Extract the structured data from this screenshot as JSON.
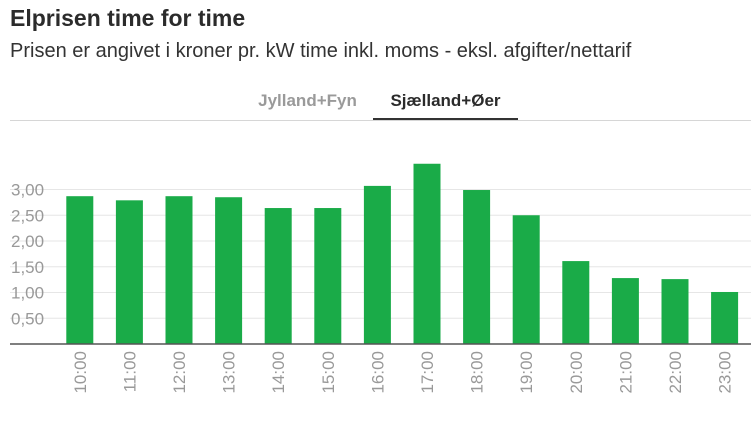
{
  "header": {
    "title": "Elprisen time for time",
    "subtitle": "Prisen er angivet i kroner pr. kW time inkl. moms - eksl. afgifter/nettarif"
  },
  "tabs": [
    {
      "label": "Jylland+Fyn",
      "active": false
    },
    {
      "label": "Sjælland+Øer",
      "active": true
    }
  ],
  "colors": {
    "bar": "#1aab48",
    "grid": "#e6e6e6",
    "axis": "#555555",
    "tick_label": "#999999"
  },
  "chart_data": {
    "type": "bar",
    "categories": [
      "10:00",
      "11:00",
      "12:00",
      "13:00",
      "14:00",
      "15:00",
      "16:00",
      "17:00",
      "18:00",
      "19:00",
      "20:00",
      "21:00",
      "22:00",
      "23:00"
    ],
    "values": [
      2.87,
      2.79,
      2.87,
      2.85,
      2.64,
      2.64,
      3.07,
      3.5,
      2.99,
      2.5,
      1.61,
      1.28,
      1.26,
      1.01
    ],
    "y_ticks": [
      "0,50",
      "1,00",
      "1,50",
      "2,00",
      "2,50",
      "3,00"
    ],
    "y_tick_values": [
      0.5,
      1.0,
      1.5,
      2.0,
      2.5,
      3.0
    ],
    "ylim": [
      0,
      3.5
    ],
    "xlabel": "",
    "ylabel": "",
    "grid": true
  }
}
